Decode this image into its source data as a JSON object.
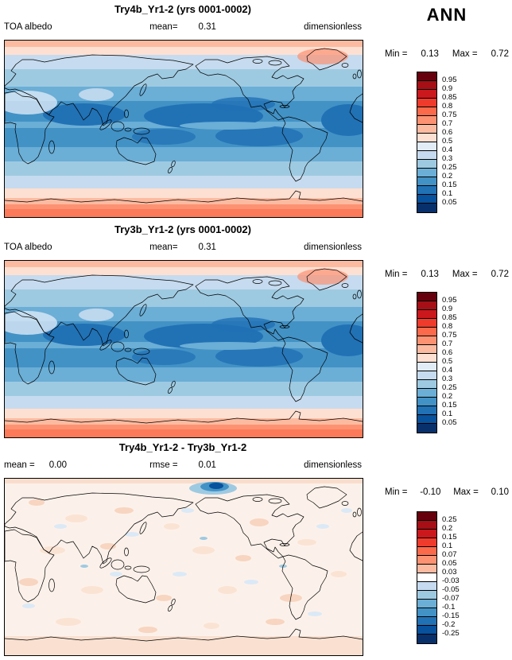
{
  "ann_label": "ANN",
  "panels": [
    {
      "title": "Try4b_Yr1-2 (yrs 0001-0002)",
      "left_label": "TOA albedo",
      "left_value": "",
      "center_label": "mean=",
      "center_value": "0.31",
      "right_label": "dimensionless",
      "min_label": "Min =",
      "min_value": "0.13",
      "max_label": "Max =",
      "max_value": "0.72",
      "colorbar_labels": [
        "0.95",
        "0.9",
        "0.85",
        "0.8",
        "0.75",
        "0.7",
        "0.6",
        "0.5",
        "0.4",
        "0.3",
        "0.25",
        "0.2",
        "0.15",
        "0.1",
        "0.05"
      ],
      "colorbar_colors": [
        "#67000d",
        "#a50f15",
        "#cb181d",
        "#ef3b2c",
        "#fb6a4a",
        "#fc9272",
        "#fcbba1",
        "#fee0d2",
        "#e1ecf7",
        "#c6dbef",
        "#9ecae1",
        "#6baed6",
        "#4292c6",
        "#2171b5",
        "#08519c",
        "#08306b"
      ]
    },
    {
      "title": "Try3b_Yr1-2 (yrs 0001-0002)",
      "left_label": "TOA albedo",
      "left_value": "",
      "center_label": "mean=",
      "center_value": "0.31",
      "right_label": "dimensionless",
      "min_label": "Min =",
      "min_value": "0.13",
      "max_label": "Max =",
      "max_value": "0.72",
      "colorbar_labels": [
        "0.95",
        "0.9",
        "0.85",
        "0.8",
        "0.75",
        "0.7",
        "0.6",
        "0.5",
        "0.4",
        "0.3",
        "0.25",
        "0.2",
        "0.15",
        "0.1",
        "0.05"
      ],
      "colorbar_colors": [
        "#67000d",
        "#a50f15",
        "#cb181d",
        "#ef3b2c",
        "#fb6a4a",
        "#fc9272",
        "#fcbba1",
        "#fee0d2",
        "#e1ecf7",
        "#c6dbef",
        "#9ecae1",
        "#6baed6",
        "#4292c6",
        "#2171b5",
        "#08519c",
        "#08306b"
      ]
    },
    {
      "title": "Try4b_Yr1-2 - Try3b_Yr1-2",
      "left_label": "mean =",
      "left_value": "0.00",
      "center_label": "rmse =",
      "center_value": "0.01",
      "right_label": "dimensionless",
      "min_label": "Min =",
      "min_value": "-0.10",
      "max_label": "Max =",
      "max_value": "0.10",
      "colorbar_labels": [
        "0.25",
        "0.2",
        "0.15",
        "0.1",
        "0.07",
        "0.05",
        "0.03",
        "-0.03",
        "-0.05",
        "-0.07",
        "-0.1",
        "-0.15",
        "-0.2",
        "-0.25"
      ],
      "colorbar_colors": [
        "#67000d",
        "#a50f15",
        "#cb181d",
        "#ef3b2c",
        "#fb6a4a",
        "#fc9272",
        "#fcbba1",
        "#ffffff",
        "#c6dbef",
        "#9ecae1",
        "#6baed6",
        "#4292c6",
        "#2171b5",
        "#08519c",
        "#08306b"
      ]
    }
  ],
  "chart_data": [
    {
      "type": "heatmap",
      "title": "Try4b_Yr1-2 (yrs 0001-0002)",
      "variable": "TOA albedo",
      "units": "dimensionless",
      "season": "ANN",
      "projection": "global cylindrical lat-lon, 0-360E, 90N-90S",
      "mean": 0.31,
      "min": 0.13,
      "max": 0.72,
      "contour_levels": [
        0.05,
        0.1,
        0.15,
        0.2,
        0.25,
        0.3,
        0.4,
        0.5,
        0.6,
        0.7,
        0.75,
        0.8,
        0.85,
        0.9,
        0.95
      ],
      "palette": "blue (low albedo) to red (high albedo)",
      "pattern": "dark blue minima over subtropical/tropical oceans; light blue midlatitudes; salmon/red high albedo over Arctic, ~60S band and Antarctica"
    },
    {
      "type": "heatmap",
      "title": "Try3b_Yr1-2 (yrs 0001-0002)",
      "variable": "TOA albedo",
      "units": "dimensionless",
      "season": "ANN",
      "projection": "global cylindrical lat-lon, 0-360E, 90N-90S",
      "mean": 0.31,
      "min": 0.13,
      "max": 0.72,
      "contour_levels": [
        0.05,
        0.1,
        0.15,
        0.2,
        0.25,
        0.3,
        0.4,
        0.5,
        0.6,
        0.7,
        0.75,
        0.8,
        0.85,
        0.9,
        0.95
      ],
      "palette": "blue (low albedo) to red (high albedo)",
      "pattern": "nearly identical to Try4b panel"
    },
    {
      "type": "heatmap",
      "title": "Try4b_Yr1-2 - Try3b_Yr1-2",
      "variable": "TOA albedo difference",
      "units": "dimensionless",
      "season": "ANN",
      "projection": "global cylindrical lat-lon, 0-360E, 90N-90S",
      "mean": 0.0,
      "rmse": 0.01,
      "min": -0.1,
      "max": 0.1,
      "contour_levels": [
        -0.25,
        -0.2,
        -0.15,
        -0.1,
        -0.07,
        -0.05,
        -0.03,
        0.03,
        0.05,
        0.07,
        0.1,
        0.15,
        0.2,
        0.25
      ],
      "palette": "blue negative, white near zero, red positive",
      "pattern": "mostly near-zero pale field with small scattered speckles; small negative (blue) patch near northern high latitudes"
    }
  ]
}
